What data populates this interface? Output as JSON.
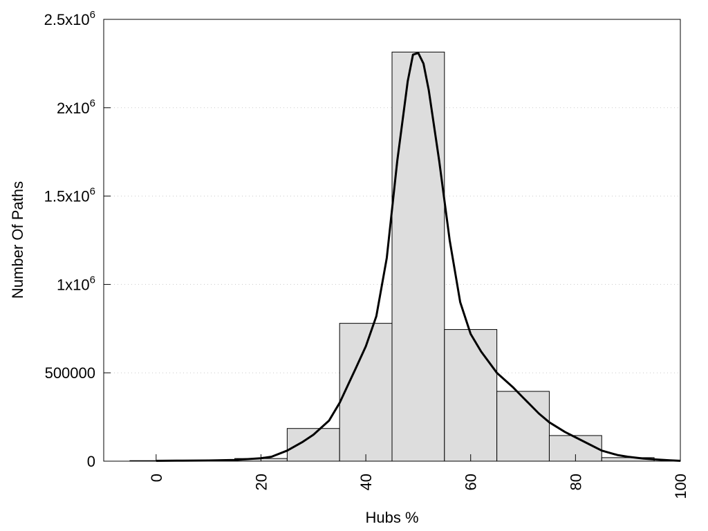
{
  "chart_data": {
    "type": "bar",
    "title": "",
    "xlabel": "Hubs %",
    "ylabel": "Number Of Paths",
    "xlim": [
      -10,
      100
    ],
    "ylim": [
      0,
      2500000
    ],
    "grid": true,
    "bar_color": "#dddddd",
    "line_color": "#000000",
    "x_ticks": [
      {
        "value": 0,
        "label": "0"
      },
      {
        "value": 20,
        "label": "20"
      },
      {
        "value": 40,
        "label": "40"
      },
      {
        "value": 60,
        "label": "60"
      },
      {
        "value": 80,
        "label": "80"
      },
      {
        "value": 100,
        "label": "100"
      }
    ],
    "y_ticks": [
      {
        "value": 0,
        "base": "0",
        "exp": ""
      },
      {
        "value": 500000,
        "base": "500000",
        "exp": ""
      },
      {
        "value": 1000000,
        "base": "1x10",
        "exp": "6"
      },
      {
        "value": 1500000,
        "base": "1.5x10",
        "exp": "6"
      },
      {
        "value": 2000000,
        "base": "2x10",
        "exp": "6"
      },
      {
        "value": 2500000,
        "base": "2.5x10",
        "exp": "6"
      }
    ],
    "bins": [
      {
        "center": 0,
        "width": 10,
        "value": 3000
      },
      {
        "center": 10,
        "width": 10,
        "value": 4000
      },
      {
        "center": 20,
        "width": 10,
        "value": 15000
      },
      {
        "center": 30,
        "width": 10,
        "value": 185000
      },
      {
        "center": 40,
        "width": 10,
        "value": 780000
      },
      {
        "center": 50,
        "width": 10,
        "value": 2315000
      },
      {
        "center": 60,
        "width": 10,
        "value": 745000
      },
      {
        "center": 70,
        "width": 10,
        "value": 395000
      },
      {
        "center": 80,
        "width": 10,
        "value": 145000
      },
      {
        "center": 90,
        "width": 10,
        "value": 20000
      }
    ],
    "curve": [
      [
        0,
        2000
      ],
      [
        5,
        3000
      ],
      [
        10,
        4000
      ],
      [
        15,
        7000
      ],
      [
        20,
        17000
      ],
      [
        22,
        25000
      ],
      [
        25,
        60000
      ],
      [
        28,
        110000
      ],
      [
        30,
        150000
      ],
      [
        33,
        230000
      ],
      [
        35,
        330000
      ],
      [
        38,
        520000
      ],
      [
        40,
        650000
      ],
      [
        42,
        820000
      ],
      [
        44,
        1150000
      ],
      [
        46,
        1700000
      ],
      [
        48,
        2150000
      ],
      [
        49,
        2300000
      ],
      [
        50,
        2310000
      ],
      [
        51,
        2250000
      ],
      [
        52,
        2100000
      ],
      [
        54,
        1700000
      ],
      [
        56,
        1250000
      ],
      [
        58,
        900000
      ],
      [
        60,
        720000
      ],
      [
        62,
        620000
      ],
      [
        65,
        500000
      ],
      [
        68,
        420000
      ],
      [
        70,
        360000
      ],
      [
        73,
        270000
      ],
      [
        75,
        220000
      ],
      [
        78,
        165000
      ],
      [
        80,
        135000
      ],
      [
        83,
        90000
      ],
      [
        85,
        60000
      ],
      [
        88,
        35000
      ],
      [
        90,
        25000
      ],
      [
        93,
        15000
      ],
      [
        95,
        10000
      ],
      [
        98,
        5000
      ],
      [
        100,
        2000
      ]
    ]
  }
}
